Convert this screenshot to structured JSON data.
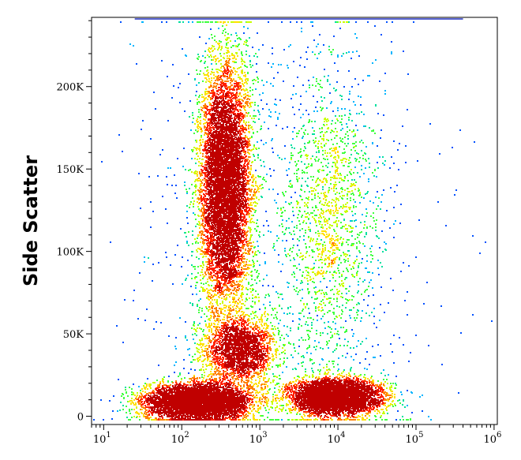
{
  "chart_data": {
    "type": "scatter",
    "title": "",
    "xlabel": "",
    "ylabel": "Side Scatter",
    "x_scale": "log",
    "xlim": [
      7,
      1100000
    ],
    "ylim": [
      -5000,
      242000
    ],
    "x_ticks": [
      {
        "value": 10,
        "base": "10",
        "exp": "1"
      },
      {
        "value": 100,
        "base": "10",
        "exp": "2"
      },
      {
        "value": 1000,
        "base": "10",
        "exp": "3"
      },
      {
        "value": 10000,
        "base": "10",
        "exp": "4"
      },
      {
        "value": 100000,
        "base": "10",
        "exp": "5"
      },
      {
        "value": 1000000,
        "base": "10",
        "exp": "6"
      }
    ],
    "y_ticks": [
      {
        "value": 0,
        "label": "0"
      },
      {
        "value": 50000,
        "label": "50K"
      },
      {
        "value": 100000,
        "label": "100K"
      },
      {
        "value": 150000,
        "label": "150K"
      },
      {
        "value": 200000,
        "label": "200K"
      }
    ],
    "grid": false,
    "legend": "none",
    "point_color_mode": "density",
    "colormap": [
      "#0000c8",
      "#0050ff",
      "#00b4ff",
      "#00e0a0",
      "#40ff40",
      "#c8ff00",
      "#ffe000",
      "#ff8000",
      "#ff2000",
      "#c00000"
    ],
    "populations": [
      {
        "name": "",
        "log10_x_center": 2.2,
        "log10_x_sd": 0.34,
        "y_center": 9000,
        "y_sd": 5500,
        "count": 5200
      },
      {
        "name": "",
        "log10_x_center": 3.95,
        "log10_x_sd": 0.3,
        "y_center": 12000,
        "y_sd": 5500,
        "count": 4400
      },
      {
        "name": "",
        "log10_x_center": 2.55,
        "log10_x_sd": 0.17,
        "y_center": 140000,
        "y_sd": 38000,
        "count": 7600
      },
      {
        "name": "",
        "log10_x_center": 2.75,
        "log10_x_sd": 0.24,
        "y_center": 40000,
        "y_sd": 11000,
        "count": 2200
      },
      {
        "name": "",
        "log10_x_center": 3.9,
        "log10_x_sd": 0.3,
        "y_center": 120000,
        "y_sd": 45000,
        "count": 1500
      },
      {
        "name": "",
        "log10_x_center": 3.2,
        "log10_x_sd": 1.0,
        "y_center": 100000,
        "y_sd": 80000,
        "count": 900
      }
    ]
  }
}
